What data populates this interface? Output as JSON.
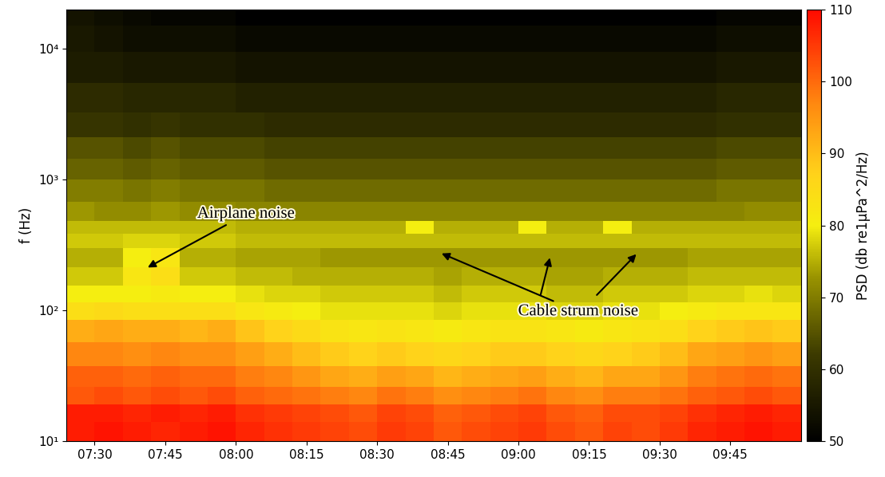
{
  "chart_data": {
    "type": "heatmap",
    "y_label": "f (Hz)",
    "log": "y",
    "x": [
      447,
      453,
      459,
      465,
      471,
      477,
      483,
      489,
      495,
      501,
      507,
      513,
      519,
      525,
      531,
      537,
      543,
      549,
      555,
      561,
      567,
      573,
      579,
      585,
      591,
      597
    ],
    "y": [
      12,
      16,
      22,
      30,
      45,
      70,
      100,
      130,
      180,
      250,
      350,
      420,
      550,
      800,
      1200,
      1700,
      2500,
      4000,
      7000,
      12000,
      18000
    ],
    "cells": [
      [
        108,
        109,
        108,
        107,
        108,
        109,
        107,
        106,
        105,
        104,
        103,
        105,
        104,
        102,
        103,
        104,
        105,
        103,
        102,
        104,
        103,
        105,
        107,
        108,
        109,
        108
      ],
      [
        108,
        108,
        107,
        108,
        107,
        108,
        106,
        105,
        104,
        103,
        102,
        104,
        103,
        101,
        102,
        103,
        104,
        102,
        101,
        103,
        103,
        104,
        106,
        107,
        108,
        107
      ],
      [
        102,
        103,
        102,
        103,
        102,
        103,
        101,
        100,
        99,
        98,
        97,
        99,
        98,
        96,
        97,
        98,
        99,
        97,
        96,
        98,
        98,
        99,
        101,
        102,
        103,
        102
      ],
      [
        101,
        101,
        100,
        101,
        100,
        100,
        98,
        97,
        95,
        93,
        92,
        94,
        93,
        91,
        92,
        93,
        94,
        92,
        91,
        93,
        93,
        95,
        98,
        99,
        100,
        99
      ],
      [
        97,
        97,
        96,
        97,
        96,
        96,
        94,
        92,
        90,
        88,
        87,
        88,
        87,
        86,
        87,
        88,
        88,
        87,
        86,
        87,
        88,
        90,
        93,
        94,
        95,
        94
      ],
      [
        92,
        93,
        92,
        92,
        91,
        92,
        89,
        87,
        85,
        83,
        82,
        83,
        82,
        81,
        82,
        83,
        83,
        82,
        81,
        82,
        83,
        84,
        87,
        88,
        89,
        88
      ],
      [
        84,
        85,
        84,
        84,
        84,
        84,
        82,
        81,
        80,
        79,
        79,
        79,
        79,
        78,
        79,
        79,
        79,
        78,
        78,
        79,
        79,
        80,
        81,
        82,
        82,
        82
      ],
      [
        80,
        80,
        80,
        81,
        80,
        80,
        79,
        78,
        78,
        77,
        77,
        77,
        77,
        76,
        77,
        77,
        77,
        76,
        76,
        77,
        77,
        77,
        78,
        78,
        79,
        78
      ],
      [
        77,
        77,
        82,
        84,
        77,
        77,
        76,
        76,
        75,
        75,
        75,
        75,
        75,
        74,
        75,
        75,
        75,
        74,
        74,
        75,
        75,
        75,
        76,
        76,
        76,
        76
      ],
      [
        75,
        75,
        80,
        82,
        75,
        75,
        74,
        74,
        74,
        73,
        73,
        73,
        73,
        73,
        73,
        73,
        73,
        73,
        73,
        73,
        73,
        73,
        74,
        74,
        74,
        74
      ],
      [
        77,
        77,
        78,
        78,
        77,
        77,
        76,
        76,
        76,
        76,
        76,
        76,
        76,
        76,
        76,
        76,
        76,
        76,
        76,
        76,
        76,
        76,
        76,
        76,
        76,
        76
      ],
      [
        76,
        76,
        76,
        76,
        76,
        76,
        75,
        75,
        75,
        75,
        75,
        75,
        80,
        75,
        75,
        75,
        80,
        75,
        75,
        80,
        75,
        75,
        75,
        75,
        75,
        75
      ],
      [
        73,
        72,
        72,
        73,
        72,
        72,
        71,
        71,
        71,
        71,
        71,
        71,
        71,
        71,
        71,
        71,
        71,
        71,
        71,
        71,
        71,
        71,
        71,
        71,
        72,
        72
      ],
      [
        70,
        70,
        69,
        70,
        69,
        69,
        69,
        68,
        68,
        68,
        68,
        68,
        68,
        68,
        68,
        68,
        68,
        68,
        68,
        68,
        68,
        68,
        68,
        69,
        69,
        69
      ],
      [
        67,
        67,
        66,
        67,
        66,
        66,
        66,
        65,
        65,
        65,
        65,
        65,
        65,
        65,
        65,
        65,
        65,
        65,
        65,
        65,
        65,
        65,
        65,
        66,
        66,
        66
      ],
      [
        65,
        65,
        64,
        65,
        64,
        64,
        64,
        63,
        63,
        63,
        63,
        63,
        63,
        63,
        63,
        63,
        63,
        63,
        63,
        63,
        63,
        63,
        63,
        64,
        64,
        64
      ],
      [
        61,
        61,
        60,
        61,
        60,
        60,
        60,
        59,
        59,
        59,
        59,
        59,
        59,
        59,
        59,
        59,
        59,
        59,
        59,
        59,
        59,
        59,
        59,
        60,
        60,
        60
      ],
      [
        59,
        59,
        58,
        58,
        58,
        58,
        57,
        57,
        57,
        57,
        57,
        57,
        57,
        57,
        57,
        57,
        57,
        57,
        57,
        57,
        57,
        57,
        57,
        58,
        58,
        58
      ],
      [
        56,
        56,
        55,
        55,
        55,
        55,
        54,
        54,
        54,
        54,
        54,
        54,
        54,
        54,
        54,
        54,
        54,
        54,
        54,
        54,
        54,
        54,
        54,
        55,
        55,
        55
      ],
      [
        55,
        54,
        53,
        53,
        53,
        53,
        52,
        52,
        52,
        52,
        52,
        52,
        52,
        52,
        52,
        52,
        52,
        52,
        52,
        52,
        52,
        52,
        52,
        53,
        53,
        53
      ],
      [
        54,
        53,
        52,
        51,
        51,
        51,
        50,
        50,
        50,
        50,
        50,
        50,
        50,
        50,
        50,
        50,
        50,
        50,
        50,
        50,
        50,
        50,
        50,
        51,
        51,
        51
      ]
    ],
    "xlim": [
      444,
      600
    ],
    "xticks": [
      {
        "value": 450,
        "label": "07:30"
      },
      {
        "value": 465,
        "label": "07:45"
      },
      {
        "value": 480,
        "label": "08:00"
      },
      {
        "value": 495,
        "label": "08:15"
      },
      {
        "value": 510,
        "label": "08:30"
      },
      {
        "value": 525,
        "label": "08:45"
      },
      {
        "value": 540,
        "label": "09:00"
      },
      {
        "value": 555,
        "label": "09:15"
      },
      {
        "value": 570,
        "label": "09:30"
      },
      {
        "value": 585,
        "label": "09:45"
      }
    ],
    "ylim": [
      10,
      20000
    ],
    "yticks": [
      {
        "value": 10,
        "label": "10¹"
      },
      {
        "value": 100,
        "label": "10²"
      },
      {
        "value": 1000,
        "label": "10³"
      },
      {
        "value": 10000,
        "label": "10⁴"
      }
    ],
    "colorbar_label": "PSD (db re1μPa^2/Hz)",
    "colorbar_lim": [
      50,
      110
    ],
    "colorbar_ticks": [
      50,
      60,
      70,
      80,
      90,
      100,
      110
    ],
    "annotations": [
      "Airplane noise",
      "Cable strum noise"
    ]
  }
}
